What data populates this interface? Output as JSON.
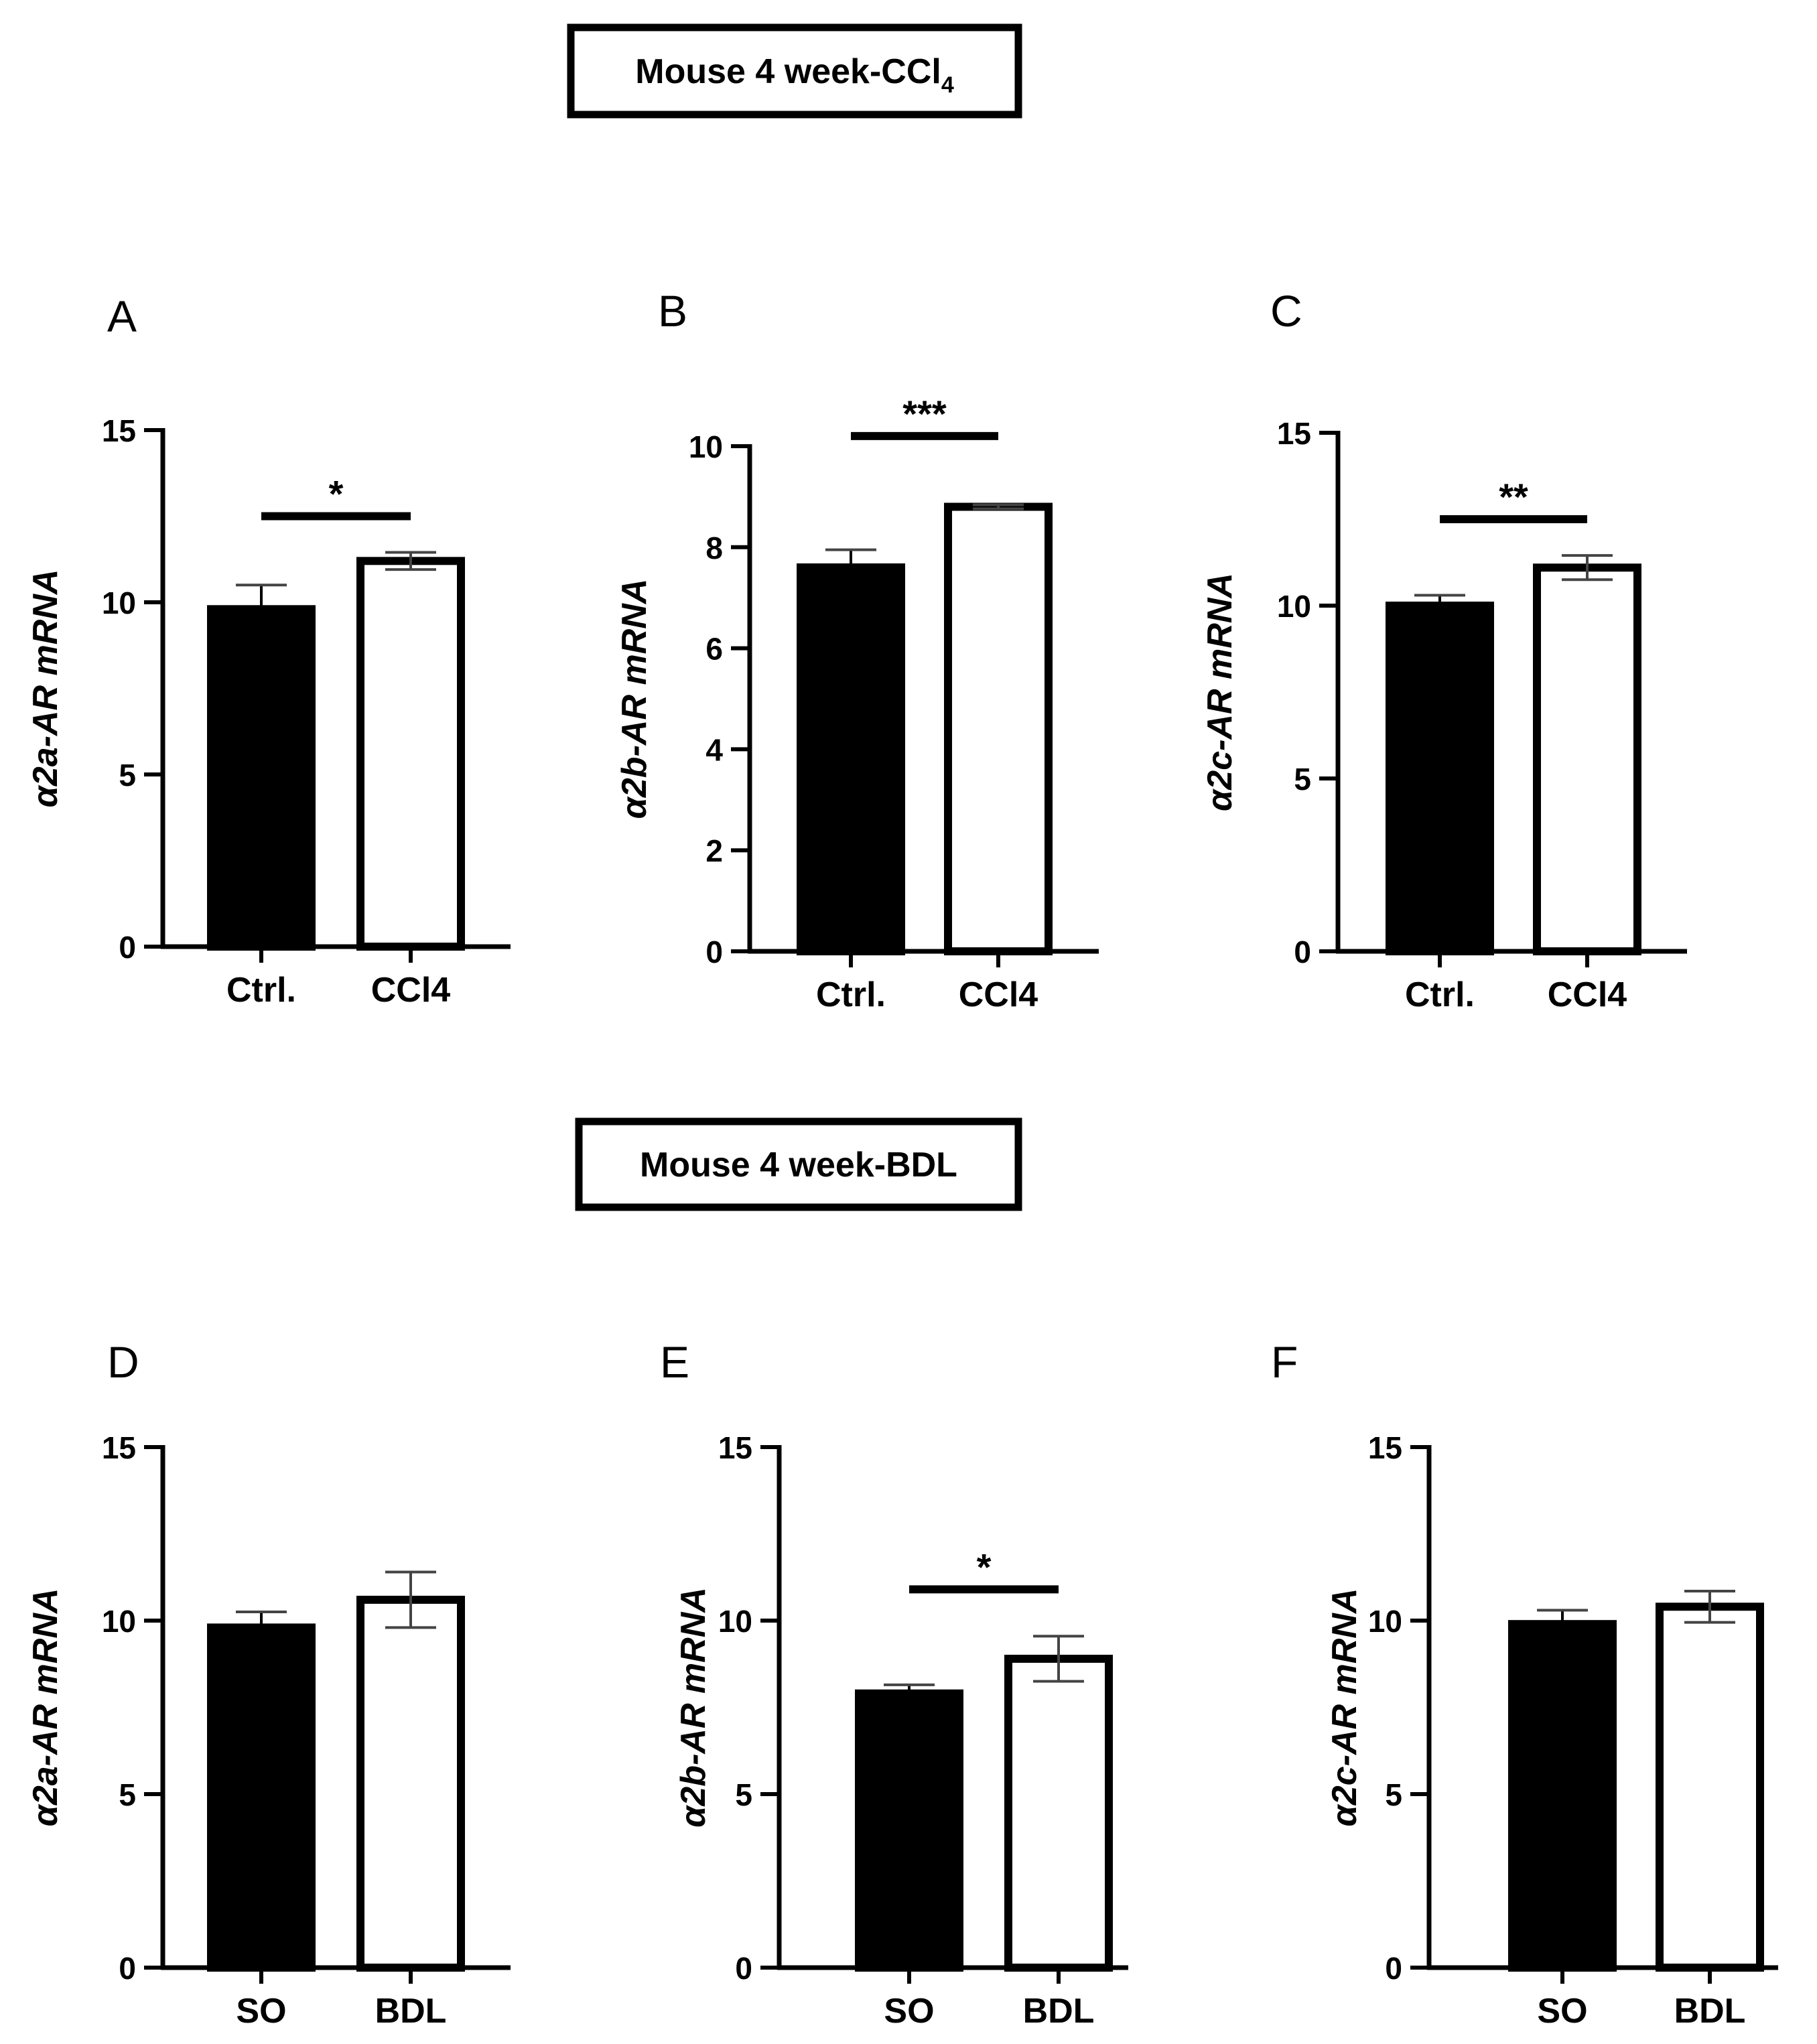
{
  "figure": {
    "headers": [
      {
        "id": "ccl4",
        "text": "Mouse 4 week-CCl",
        "subscript": "4"
      },
      {
        "id": "bdl",
        "text": "Mouse 4 week-BDL",
        "subscript": ""
      }
    ]
  },
  "chart_data": [
    {
      "panel": "A",
      "type": "bar",
      "title": "",
      "ylabel_prefix": "α",
      "ylabel": "2a-AR mRNA",
      "xlabel": "",
      "ylim": [
        0,
        15
      ],
      "yticks": [
        0,
        5,
        10,
        15
      ],
      "categories": [
        "Ctrl.",
        "CCl4"
      ],
      "values": [
        9.8,
        11.2
      ],
      "errors": [
        0.7,
        0.25
      ],
      "fills": [
        "#000000",
        "#ffffff"
      ],
      "significance": {
        "label": "*",
        "y": 12.5
      }
    },
    {
      "panel": "B",
      "type": "bar",
      "title": "",
      "ylabel_prefix": "α",
      "ylabel": "2b-AR mRNA",
      "xlabel": "",
      "ylim": [
        0,
        10
      ],
      "yticks": [
        0,
        2,
        4,
        6,
        8,
        10
      ],
      "categories": [
        "Ctrl.",
        "CCl4"
      ],
      "values": [
        7.6,
        8.8
      ],
      "errors": [
        0.35,
        0.04
      ],
      "fills": [
        "#000000",
        "#ffffff"
      ],
      "significance": {
        "label": "***",
        "y": 10.2
      }
    },
    {
      "panel": "C",
      "type": "bar",
      "title": "",
      "ylabel_prefix": "α",
      "ylabel": "2c-AR mRNA",
      "xlabel": "",
      "ylim": [
        0,
        15
      ],
      "yticks": [
        0,
        5,
        10,
        15
      ],
      "categories": [
        "Ctrl.",
        "CCl4"
      ],
      "values": [
        10.0,
        11.1
      ],
      "errors": [
        0.3,
        0.35
      ],
      "fills": [
        "#000000",
        "#ffffff"
      ],
      "significance": {
        "label": "**",
        "y": 12.5
      }
    },
    {
      "panel": "D",
      "type": "bar",
      "title": "",
      "ylabel_prefix": "α",
      "ylabel": "2a-AR mRNA",
      "xlabel": "",
      "ylim": [
        0,
        15
      ],
      "yticks": [
        0,
        5,
        10,
        15
      ],
      "categories": [
        "SO",
        "BDL"
      ],
      "values": [
        9.8,
        10.6
      ],
      "errors": [
        0.45,
        0.8
      ],
      "fills": [
        "#000000",
        "#ffffff"
      ],
      "significance": null
    },
    {
      "panel": "E",
      "type": "bar",
      "title": "",
      "ylabel_prefix": "α",
      "ylabel": "2b-AR mRNA",
      "xlabel": "",
      "ylim": [
        0,
        15
      ],
      "yticks": [
        0,
        5,
        10,
        15
      ],
      "categories": [
        "SO",
        "BDL"
      ],
      "values": [
        7.9,
        8.9
      ],
      "errors": [
        0.25,
        0.65
      ],
      "fills": [
        "#000000",
        "#ffffff"
      ],
      "significance": {
        "label": "*",
        "y": 10.9
      }
    },
    {
      "panel": "F",
      "type": "bar",
      "title": "",
      "ylabel_prefix": "α",
      "ylabel": "2c-AR mRNA",
      "xlabel": "",
      "ylim": [
        0,
        15
      ],
      "yticks": [
        0,
        5,
        10,
        15
      ],
      "categories": [
        "SO",
        "BDL"
      ],
      "values": [
        9.9,
        10.4
      ],
      "errors": [
        0.4,
        0.45
      ],
      "fills": [
        "#000000",
        "#ffffff"
      ],
      "significance": null
    }
  ]
}
